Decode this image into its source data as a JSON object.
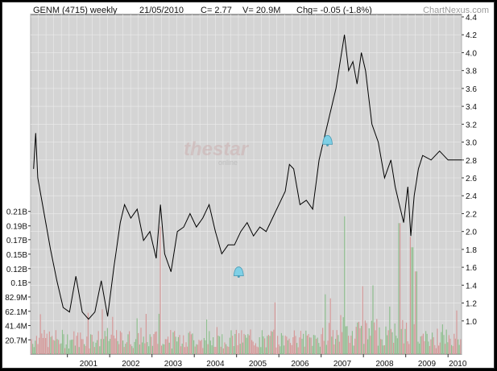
{
  "header": {
    "ticker": "GENM (4715) weekly",
    "date": "21/05/2010",
    "close": "C= 2.77",
    "volume": "V= 20.9M",
    "change": "Chg= -0.05 (-1.8%)",
    "source": "ChartNexus.com"
  },
  "watermark": {
    "text": "thestar",
    "sub": "online"
  },
  "colors": {
    "plot_bg": "#d4d4d4",
    "grid": "#ececec",
    "price_line": "#000000",
    "vol_up": "#8fbf8f",
    "vol_down": "#d69a9a",
    "alert": "#7fd0e6"
  },
  "chart_data": {
    "type": "line",
    "title": "GENM (4715) weekly",
    "xlabel": "",
    "ylabel": "",
    "x_ticks": [
      "2001",
      "2002",
      "2003",
      "2004",
      "2005",
      "2006",
      "2007",
      "2008",
      "2009",
      "2010"
    ],
    "price": {
      "ylim": [
        0.8,
        4.4
      ],
      "ticks": [
        "1.0",
        "1.2",
        "1.4",
        "1.6",
        "1.8",
        "2.0",
        "2.2",
        "2.4",
        "2.6",
        "2.8",
        "3.0",
        "3.2",
        "3.4",
        "3.6",
        "3.8",
        "4.0",
        "4.2",
        "4.4"
      ],
      "points": [
        [
          2000.2,
          2.7
        ],
        [
          2000.25,
          3.1
        ],
        [
          2000.3,
          2.6
        ],
        [
          2000.45,
          2.2
        ],
        [
          2000.6,
          1.8
        ],
        [
          2000.75,
          1.45
        ],
        [
          2000.9,
          1.15
        ],
        [
          2001.05,
          1.1
        ],
        [
          2001.2,
          1.5
        ],
        [
          2001.35,
          1.1
        ],
        [
          2001.5,
          1.02
        ],
        [
          2001.65,
          1.1
        ],
        [
          2001.8,
          1.45
        ],
        [
          2001.95,
          1.05
        ],
        [
          2002.1,
          1.6
        ],
        [
          2002.25,
          2.1
        ],
        [
          2002.35,
          2.3
        ],
        [
          2002.5,
          2.15
        ],
        [
          2002.65,
          2.25
        ],
        [
          2002.8,
          1.9
        ],
        [
          2002.95,
          2.0
        ],
        [
          2003.1,
          1.7
        ],
        [
          2003.2,
          2.3
        ],
        [
          2003.3,
          1.75
        ],
        [
          2003.45,
          1.55
        ],
        [
          2003.6,
          2.0
        ],
        [
          2003.75,
          2.05
        ],
        [
          2003.9,
          2.2
        ],
        [
          2004.05,
          2.05
        ],
        [
          2004.2,
          2.15
        ],
        [
          2004.35,
          2.3
        ],
        [
          2004.5,
          2.0
        ],
        [
          2004.65,
          1.75
        ],
        [
          2004.8,
          1.85
        ],
        [
          2004.95,
          1.85
        ],
        [
          2005.1,
          2.0
        ],
        [
          2005.25,
          2.1
        ],
        [
          2005.4,
          1.95
        ],
        [
          2005.55,
          2.05
        ],
        [
          2005.7,
          2.0
        ],
        [
          2005.85,
          2.15
        ],
        [
          2006.0,
          2.3
        ],
        [
          2006.15,
          2.45
        ],
        [
          2006.25,
          2.75
        ],
        [
          2006.35,
          2.7
        ],
        [
          2006.5,
          2.3
        ],
        [
          2006.65,
          2.35
        ],
        [
          2006.8,
          2.25
        ],
        [
          2006.95,
          2.8
        ],
        [
          2007.05,
          3.0
        ],
        [
          2007.2,
          3.3
        ],
        [
          2007.35,
          3.6
        ],
        [
          2007.45,
          3.9
        ],
        [
          2007.55,
          4.2
        ],
        [
          2007.65,
          3.8
        ],
        [
          2007.75,
          3.9
        ],
        [
          2007.85,
          3.65
        ],
        [
          2007.95,
          4.0
        ],
        [
          2008.05,
          3.8
        ],
        [
          2008.2,
          3.2
        ],
        [
          2008.35,
          3.0
        ],
        [
          2008.5,
          2.6
        ],
        [
          2008.65,
          2.8
        ],
        [
          2008.75,
          2.5
        ],
        [
          2008.85,
          2.3
        ],
        [
          2008.95,
          2.1
        ],
        [
          2009.05,
          2.5
        ],
        [
          2009.12,
          1.95
        ],
        [
          2009.2,
          2.4
        ],
        [
          2009.3,
          2.7
        ],
        [
          2009.4,
          2.85
        ],
        [
          2009.6,
          2.8
        ],
        [
          2009.8,
          2.9
        ],
        [
          2010.0,
          2.8
        ],
        [
          2010.2,
          2.8
        ],
        [
          2010.32,
          2.8
        ]
      ]
    },
    "volume": {
      "ylim": [
        0,
        0.23
      ],
      "ticks": [
        "0.21B",
        "0.19B",
        "0.17B",
        "0.15B",
        "0.12B",
        "0.1B",
        "82.9M",
        "62.1M",
        "41.4M",
        "20.7M"
      ]
    },
    "alerts": [
      {
        "x": 2007.15,
        "y": 3.02
      },
      {
        "x": 2005.05,
        "y": 1.55
      }
    ],
    "grid": true,
    "legend": "none"
  }
}
